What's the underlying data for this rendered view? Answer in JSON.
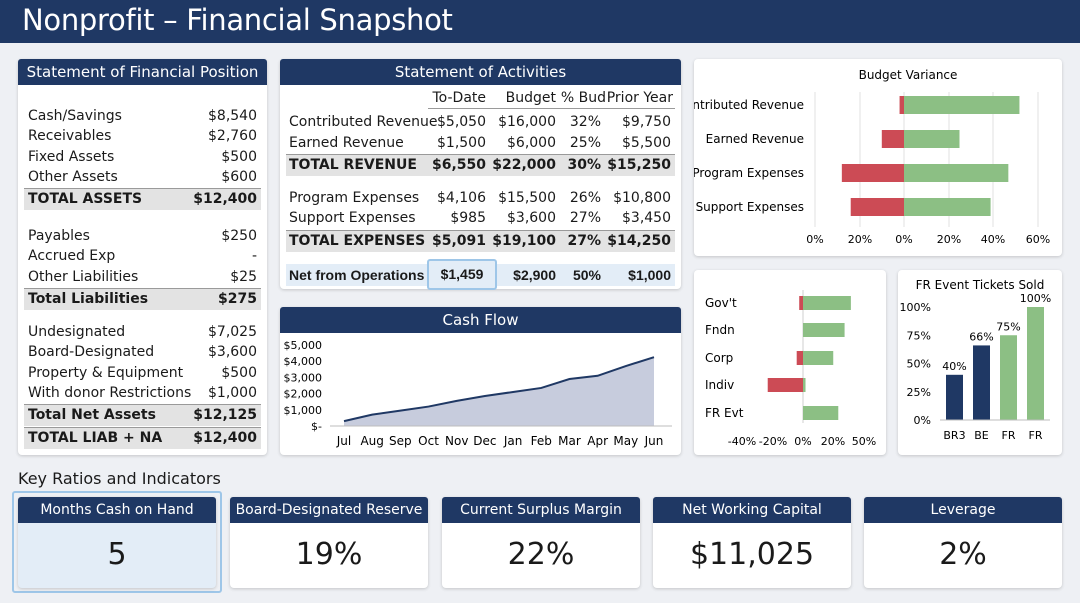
{
  "title": "Nonprofit – Financial Snapshot",
  "position": {
    "header": "Statement of Financial Position",
    "assets": [
      {
        "label": "Cash/Savings",
        "value": "$8,540"
      },
      {
        "label": "Receivables",
        "value": "$2,760"
      },
      {
        "label": "Fixed Assets",
        "value": "$500"
      },
      {
        "label": "Other Assets",
        "value": "$600"
      }
    ],
    "total_assets": {
      "label": "TOTAL ASSETS",
      "value": "$12,400"
    },
    "liabilities": [
      {
        "label": "Payables",
        "value": "$250"
      },
      {
        "label": "Accrued Exp",
        "value": "-"
      },
      {
        "label": "Other Liabilities",
        "value": "$25"
      }
    ],
    "total_liabilities": {
      "label": "Total Liabilities",
      "value": "$275"
    },
    "net_assets": [
      {
        "label": "Undesignated",
        "value": "$7,025"
      },
      {
        "label": "Board-Designated",
        "value": "$3,600"
      },
      {
        "label": "Property & Equipment",
        "value": "$500"
      },
      {
        "label": "With donor Restrictions",
        "value": "$1,000"
      }
    ],
    "total_net_assets": {
      "label": "Total Net Assets",
      "value": "$12,125"
    },
    "total_liab_na": {
      "label": "TOTAL LIAB + NA",
      "value": "$12,400"
    }
  },
  "activities": {
    "header": "Statement of Activities",
    "columns": [
      "To-Date",
      "Budget",
      "% Bud",
      "Prior Year"
    ],
    "rows": [
      {
        "label": "Contributed Revenue",
        "cells": [
          "$5,050",
          "$16,000",
          "32%",
          "$9,750"
        ]
      },
      {
        "label": "Earned Revenue",
        "cells": [
          "$1,500",
          "$6,000",
          "25%",
          "$5,500"
        ]
      },
      {
        "label": "TOTAL REVENUE",
        "cells": [
          "$6,550",
          "$22,000",
          "30%",
          "$15,250"
        ]
      },
      {
        "label": "Program Expenses",
        "cells": [
          "$4,106",
          "$15,500",
          "26%",
          "$10,800"
        ]
      },
      {
        "label": "Support Expenses",
        "cells": [
          "$985",
          "$3,600",
          "27%",
          "$3,450"
        ]
      },
      {
        "label": "TOTAL EXPENSES",
        "cells": [
          "$5,091",
          "$19,100",
          "27%",
          "$14,250"
        ]
      },
      {
        "label": "Net from Operations",
        "cells": [
          "$1,459",
          "$2,900",
          "50%",
          "$1,000"
        ]
      }
    ]
  },
  "colors": {
    "navy": "#1f3864",
    "green": "#8cbf84",
    "red": "#cc4b55",
    "bar_navy": "#1f3864",
    "highlight": "#9ec6e8"
  },
  "chart_data": [
    {
      "type": "bar",
      "title": "Budget Variance",
      "orientation": "horizontal",
      "categories": [
        "Contributed Revenue",
        "Earned Revenue",
        "Program Expenses",
        "Support Expenses"
      ],
      "series": [
        {
          "values": [
            -0.02,
            -0.1,
            -0.28,
            -0.24
          ]
        },
        {
          "values": [
            0.52,
            0.25,
            0.47,
            0.39
          ]
        }
      ],
      "tick_labels": [
        "0%",
        "20%",
        "0%",
        "20%",
        "40%",
        "60%"
      ],
      "xlim": [
        -0.4,
        0.62
      ],
      "grid": true
    },
    {
      "type": "line",
      "title": "Cash Flow",
      "categories": [
        "Jul",
        "Aug",
        "Sep",
        "Oct",
        "Nov",
        "Dec",
        "Jan",
        "Feb",
        "Mar",
        "Apr",
        "May",
        "Jun"
      ],
      "values": [
        300,
        700,
        950,
        1200,
        1550,
        1850,
        2100,
        2350,
        2900,
        3100,
        3700,
        4250
      ],
      "yticks": [
        "$-",
        "$1,000",
        "$2,000",
        "$3,000",
        "$4,000",
        "$5,000"
      ],
      "ylim": [
        0,
        5000
      ]
    },
    {
      "type": "bar",
      "orientation": "horizontal",
      "categories": [
        "Gov't",
        "Fndn",
        "Corp",
        "Indiv",
        "FR Evt"
      ],
      "series": [
        {
          "values": [
            -0.03,
            0,
            -0.05,
            -0.28,
            0
          ]
        },
        {
          "values": [
            0.38,
            0.33,
            0.24,
            0.02,
            0.28
          ]
        }
      ],
      "xticks": [
        "-40%",
        "-20%",
        "0%",
        "20%",
        "50%"
      ],
      "xlim": [
        -0.42,
        0.55
      ]
    },
    {
      "type": "bar",
      "title": "FR Event Tickets Sold",
      "categories": [
        "BR3",
        "BE",
        "FR",
        "FR"
      ],
      "values": [
        0.4,
        0.66,
        0.75,
        1.0
      ],
      "data_labels": [
        "40%",
        "66%",
        "75%",
        "100%"
      ],
      "bar_colors": [
        "#1f3864",
        "#1f3864",
        "#8cbf84",
        "#8cbf84"
      ],
      "yticks": [
        "0%",
        "25%",
        "50%",
        "75%",
        "100%"
      ],
      "ylim": [
        0,
        1.1
      ]
    }
  ],
  "ratios": {
    "heading": "Key Ratios and Indicators",
    "items": [
      {
        "label": "Months Cash on Hand",
        "value": "5"
      },
      {
        "label": "Board-Designated Reserve Ratio",
        "value": "19%"
      },
      {
        "label": "Current Surplus Margin",
        "value": "22%"
      },
      {
        "label": "Net Working Capital",
        "value": "$11,025"
      },
      {
        "label": "Leverage",
        "value": "2%"
      }
    ]
  }
}
